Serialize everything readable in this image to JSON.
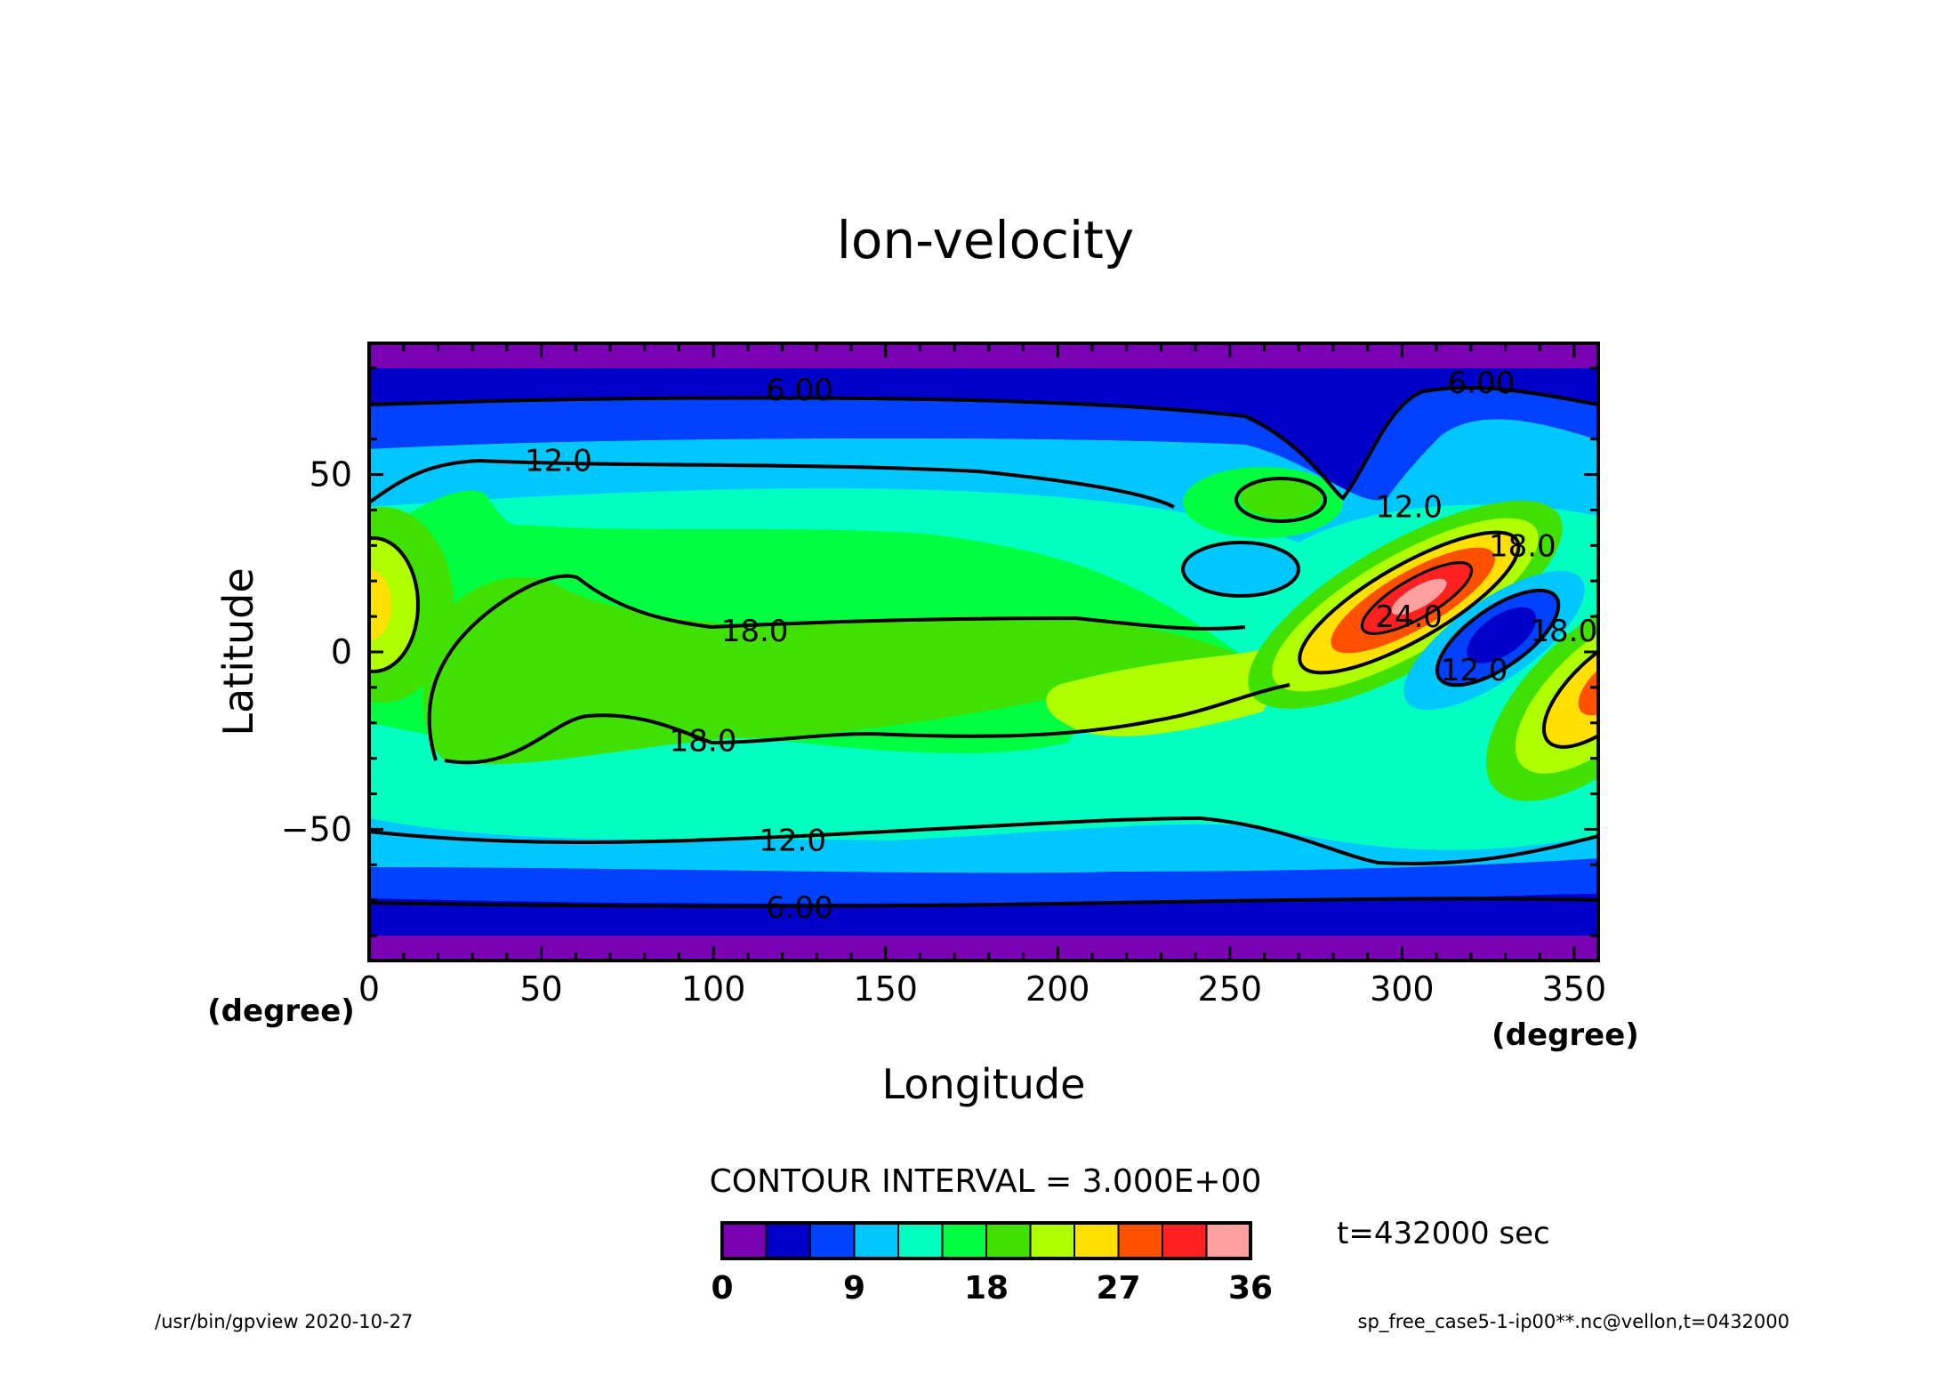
{
  "chart_data": {
    "type": "contour",
    "title": "lon-velocity",
    "xlabel": "Longitude",
    "ylabel": "Latitude",
    "x_unit": "(degree)",
    "y_unit": "(degree)",
    "xlim": [
      0,
      357
    ],
    "ylim": [
      -87,
      87
    ],
    "x_ticks": [
      0,
      50,
      100,
      150,
      200,
      250,
      300,
      350
    ],
    "y_ticks": [
      -50,
      0,
      50
    ],
    "contour_interval_text": "CONTOUR INTERVAL = 3.000E+00",
    "time_text": "t=432000 sec",
    "color_levels": [
      0,
      3,
      6,
      9,
      12,
      15,
      18,
      21,
      24,
      27,
      30,
      33,
      36
    ],
    "colorbar_tick_labels": [
      "0",
      "9",
      "18",
      "27",
      "36"
    ],
    "colorbar_tick_values": [
      0,
      9,
      18,
      27,
      36
    ],
    "colors": [
      "#7a00b4",
      "#0000c8",
      "#0040ff",
      "#00c8ff",
      "#00ffc0",
      "#00ff40",
      "#40e000",
      "#b0ff00",
      "#ffe000",
      "#ff5000",
      "#ff2020",
      "#ffa0a0"
    ],
    "contour_labels": [
      {
        "text": "6.00",
        "lon": 125,
        "lat": 74
      },
      {
        "text": "6.00",
        "lon": 323,
        "lat": 76
      },
      {
        "text": "12.0",
        "lon": 55,
        "lat": 54
      },
      {
        "text": "12.0",
        "lon": 302,
        "lat": 41
      },
      {
        "text": "18.0",
        "lon": 112,
        "lat": 6
      },
      {
        "text": "18.0",
        "lon": 97,
        "lat": -25
      },
      {
        "text": "18.0",
        "lon": 335,
        "lat": 30
      },
      {
        "text": "18.0",
        "lon": 347,
        "lat": 6
      },
      {
        "text": "24.0",
        "lon": 302,
        "lat": 10
      },
      {
        "text": "12.0",
        "lon": 321,
        "lat": -5
      },
      {
        "text": "12.0",
        "lon": 123,
        "lat": -53
      },
      {
        "text": "6.00",
        "lon": 125,
        "lat": -72
      }
    ]
  },
  "footer": {
    "left": "/usr/bin/gpview   2020-10-27",
    "right": "sp_free_case5-1-ip00**.nc@vellon,t=0432000"
  }
}
